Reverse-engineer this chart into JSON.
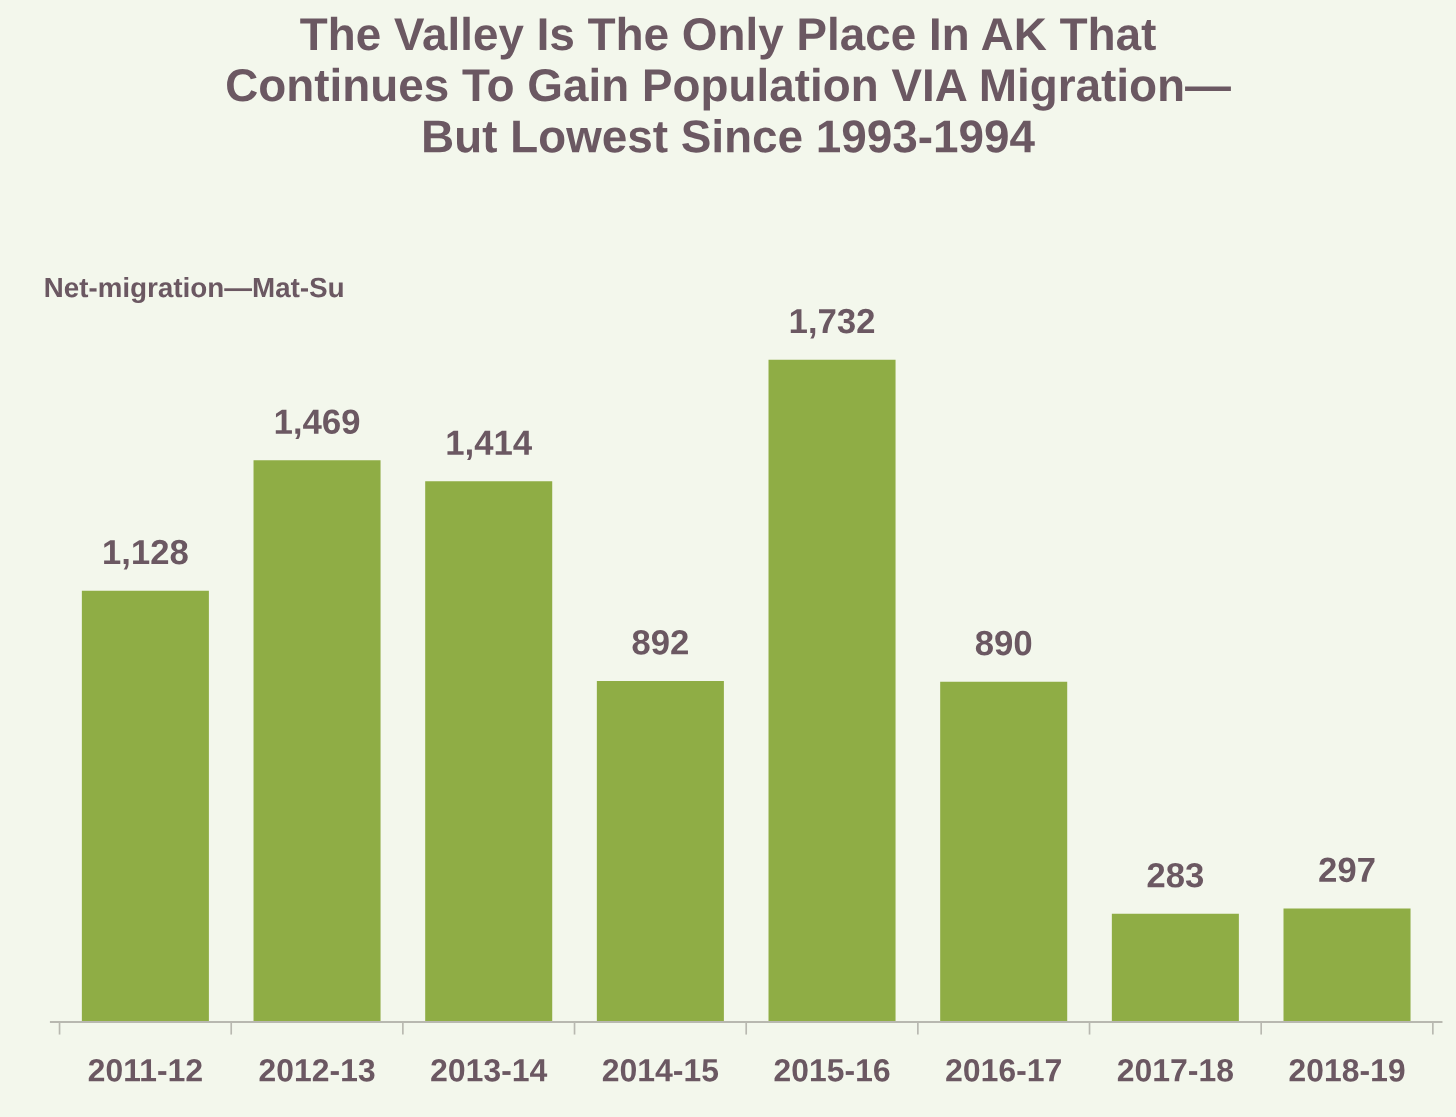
{
  "chart_data": {
    "type": "bar",
    "title": "The Valley Is The Only Place In AK That\nContinues To Gain Population VIA Migration—\nBut Lowest Since 1993-1994",
    "subtitle": "Net-migration—Mat-Su",
    "categories": [
      "2011-12",
      "2012-13",
      "2013-14",
      "2014-15",
      "2015-16",
      "2016-17",
      "2017-18",
      "2018-19"
    ],
    "values": [
      1128,
      1469,
      1414,
      892,
      1732,
      890,
      283,
      297
    ],
    "value_labels": [
      "1,128",
      "1,469",
      "1,414",
      "892",
      "1,732",
      "890",
      "283",
      "297"
    ],
    "color": "#8fad45",
    "tick_labels": "x"
  }
}
